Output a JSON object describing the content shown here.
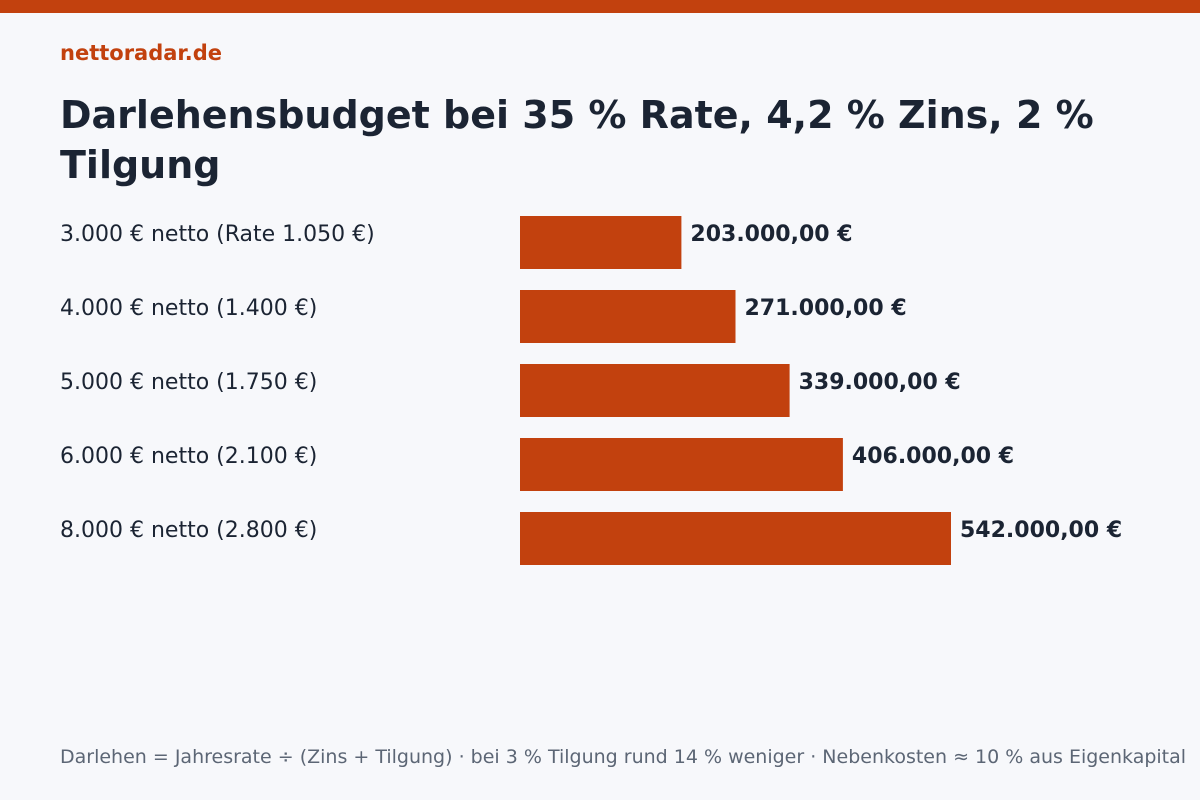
{
  "brand": "nettoradar.de",
  "colors": {
    "accent": "#c2410e",
    "text": "#1b2433",
    "muted": "#5c6675",
    "background": "#f7f8fb"
  },
  "chart_data": {
    "type": "bar",
    "orientation": "horizontal",
    "title": "Darlehensbudget bei 35 % Rate, 4,2 % Zins, 2 % Tilgung",
    "categories": [
      "3.000 € netto (Rate 1.050 €)",
      "4.000 € netto (1.400 €)",
      "5.000 € netto (1.750 €)",
      "6.000 € netto (2.100 €)",
      "8.000 € netto (2.800 €)"
    ],
    "values": [
      203000,
      271000,
      339000,
      406000,
      542000
    ],
    "value_labels": [
      "203.000,00 €",
      "271.000,00 €",
      "339.000,00 €",
      "406.000,00 €",
      "542.000,00 €"
    ],
    "bar_color": "#c2410e",
    "grid": false,
    "xlim": [
      0,
      542000
    ]
  },
  "footnote": "Darlehen = Jahresrate ÷ (Zins + Tilgung) · bei 3 % Tilgung rund 14 % weniger · Nebenkosten ≈ 10 % aus Eigenkapital"
}
